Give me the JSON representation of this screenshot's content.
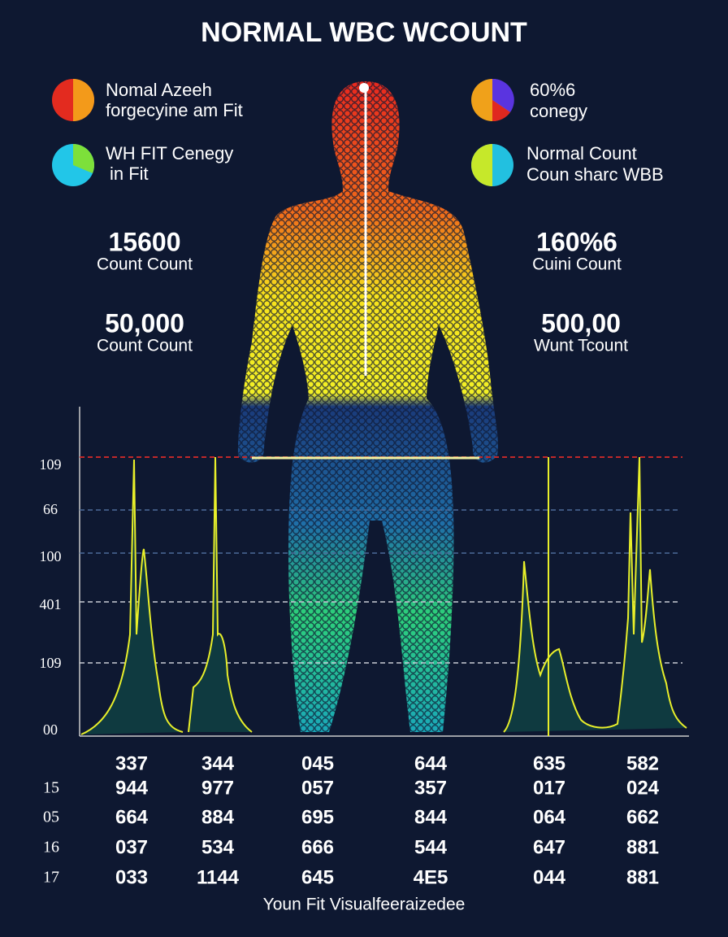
{
  "title": "NORMAL WBC WCOUNT",
  "legends": [
    {
      "line1": "Nomal Azeeh",
      "line2": "forgecyine am Fit"
    },
    {
      "line1": "WH FIT Cenegy",
      "line2": "in Fit"
    },
    {
      "line1": "60%6",
      "line2": "conegy"
    },
    {
      "line1": "Normal Count",
      "line2": "Coun sharc WBB"
    }
  ],
  "stats": [
    {
      "value": "15600",
      "label": "Count Count"
    },
    {
      "value": "50,000",
      "label": "Count Count"
    },
    {
      "value": "160%6",
      "label": "Cuini Count"
    },
    {
      "value": "500,00",
      "label": "Wunt Tcount"
    }
  ],
  "axis_labels": [
    "109",
    "66",
    "100",
    "401",
    "109",
    "00"
  ],
  "table": {
    "header": [
      "337",
      "344",
      "045",
      "644",
      "635",
      "582"
    ],
    "row_labels": [
      "15",
      "05",
      "16",
      "17"
    ],
    "rows": [
      [
        "944",
        "977",
        "057",
        "357",
        "017",
        "024"
      ],
      [
        "664",
        "884",
        "695",
        "844",
        "064",
        "662"
      ],
      [
        "037",
        "534",
        "666",
        "544",
        "647",
        "881"
      ],
      [
        "033",
        "1144",
        "645",
        "4E5",
        "044",
        "881"
      ]
    ]
  },
  "footer": "Youn Fit Visualfeeraizedee"
}
